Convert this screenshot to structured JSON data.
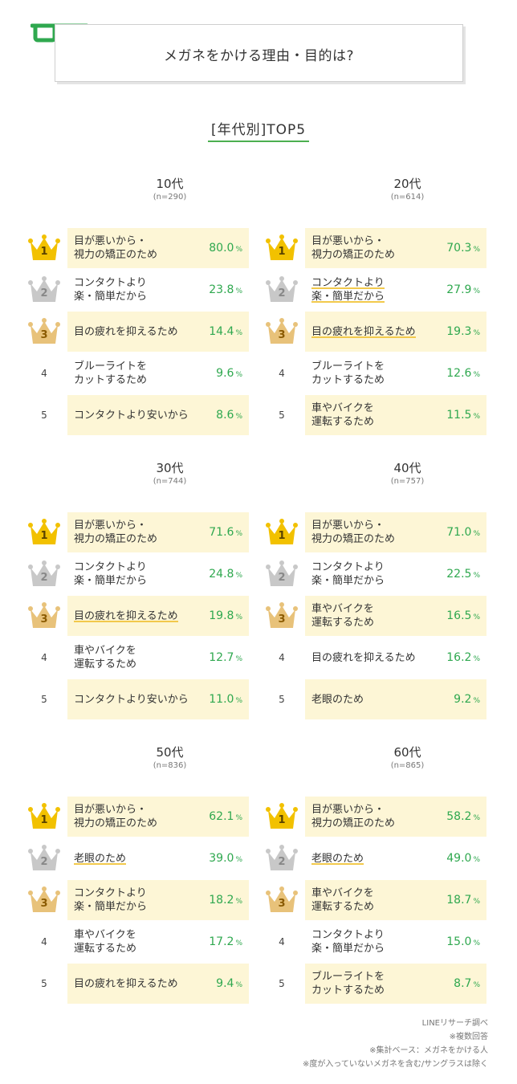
{
  "header": {
    "title": "メガネをかける理由・目的は?",
    "subtitle": "[年代別]TOP5",
    "accent_color": "#2fa84f",
    "icon": "glasses-icon"
  },
  "chart_data": [
    {
      "type": "table",
      "title": "10代",
      "sample": "(n=290)",
      "rows": [
        {
          "rank": "1",
          "label": "目が悪いから・\n視力の矯正のため",
          "value": 80.0,
          "value_text": "80.0"
        },
        {
          "rank": "2",
          "label": "コンタクトより\n楽・簡単だから",
          "value": 23.8,
          "value_text": "23.8"
        },
        {
          "rank": "3",
          "label": "目の疲れを抑えるため",
          "value": 14.4,
          "value_text": "14.4"
        },
        {
          "rank": "4",
          "label": "ブルーライトを\nカットするため",
          "value": 9.6,
          "value_text": "9.6"
        },
        {
          "rank": "5",
          "label": "コンタクトより安いから",
          "value": 8.6,
          "value_text": "8.6"
        }
      ]
    },
    {
      "type": "table",
      "title": "20代",
      "sample": "(n=614)",
      "rows": [
        {
          "rank": "1",
          "label": "目が悪いから・\n視力の矯正のため",
          "value": 70.3,
          "value_text": "70.3"
        },
        {
          "rank": "2",
          "label": "コンタクトより\n楽・簡単だから",
          "value": 27.9,
          "value_text": "27.9"
        },
        {
          "rank": "3",
          "label": "目の疲れを抑えるため",
          "value": 19.3,
          "value_text": "19.3"
        },
        {
          "rank": "4",
          "label": "ブルーライトを\nカットするため",
          "value": 12.6,
          "value_text": "12.6"
        },
        {
          "rank": "5",
          "label": "車やバイクを\n運転するため",
          "value": 11.5,
          "value_text": "11.5"
        }
      ]
    },
    {
      "type": "table",
      "title": "30代",
      "sample": "(n=744)",
      "rows": [
        {
          "rank": "1",
          "label": "目が悪いから・\n視力の矯正のため",
          "value": 71.6,
          "value_text": "71.6"
        },
        {
          "rank": "2",
          "label": "コンタクトより\n楽・簡単だから",
          "value": 24.8,
          "value_text": "24.8"
        },
        {
          "rank": "3",
          "label": "目の疲れを抑えるため",
          "value": 19.8,
          "value_text": "19.8"
        },
        {
          "rank": "4",
          "label": "車やバイクを\n運転するため",
          "value": 12.7,
          "value_text": "12.7"
        },
        {
          "rank": "5",
          "label": "コンタクトより安いから",
          "value": 11.0,
          "value_text": "11.0"
        }
      ]
    },
    {
      "type": "table",
      "title": "40代",
      "sample": "(n=757)",
      "rows": [
        {
          "rank": "1",
          "label": "目が悪いから・\n視力の矯正のため",
          "value": 71.0,
          "value_text": "71.0"
        },
        {
          "rank": "2",
          "label": "コンタクトより\n楽・簡単だから",
          "value": 22.5,
          "value_text": "22.5"
        },
        {
          "rank": "3",
          "label": "車やバイクを\n運転するため",
          "value": 16.5,
          "value_text": "16.5"
        },
        {
          "rank": "4",
          "label": "目の疲れを抑えるため",
          "value": 16.2,
          "value_text": "16.2"
        },
        {
          "rank": "5",
          "label": "老眼のため",
          "value": 9.2,
          "value_text": "9.2"
        }
      ]
    },
    {
      "type": "table",
      "title": "50代",
      "sample": "(n=836)",
      "rows": [
        {
          "rank": "1",
          "label": "目が悪いから・\n視力の矯正のため",
          "value": 62.1,
          "value_text": "62.1"
        },
        {
          "rank": "2",
          "label": "老眼のため",
          "value": 39.0,
          "value_text": "39.0"
        },
        {
          "rank": "3",
          "label": "コンタクトより\n楽・簡単だから",
          "value": 18.2,
          "value_text": "18.2"
        },
        {
          "rank": "4",
          "label": "車やバイクを\n運転するため",
          "value": 17.2,
          "value_text": "17.2"
        },
        {
          "rank": "5",
          "label": "目の疲れを抑えるため",
          "value": 9.4,
          "value_text": "9.4"
        }
      ]
    },
    {
      "type": "table",
      "title": "60代",
      "sample": "(n=865)",
      "rows": [
        {
          "rank": "1",
          "label": "目が悪いから・\n視力の矯正のため",
          "value": 58.2,
          "value_text": "58.2"
        },
        {
          "rank": "2",
          "label": "老眼のため",
          "value": 49.0,
          "value_text": "49.0"
        },
        {
          "rank": "3",
          "label": "車やバイクを\n運転するため",
          "value": 18.7,
          "value_text": "18.7"
        },
        {
          "rank": "4",
          "label": "コンタクトより\n楽・簡単だから",
          "value": 15.0,
          "value_text": "15.0"
        },
        {
          "rank": "5",
          "label": "ブルーライトを\nカットするため",
          "value": 8.7,
          "value_text": "8.7"
        }
      ]
    }
  ],
  "percent_sign": "%",
  "colors": {
    "gold": "#f2c100",
    "silver": "#c8c8c8",
    "bronze": "#e8c27a",
    "highlight_bg": "#fdf6d6",
    "value_green": "#2fa84f"
  },
  "footer": {
    "lines": [
      "LINEリサーチ調べ",
      "※複数回答",
      "※集計ベース：メガネをかける人",
      "※度が入っていないメガネを含む/サングラスは除く"
    ]
  }
}
